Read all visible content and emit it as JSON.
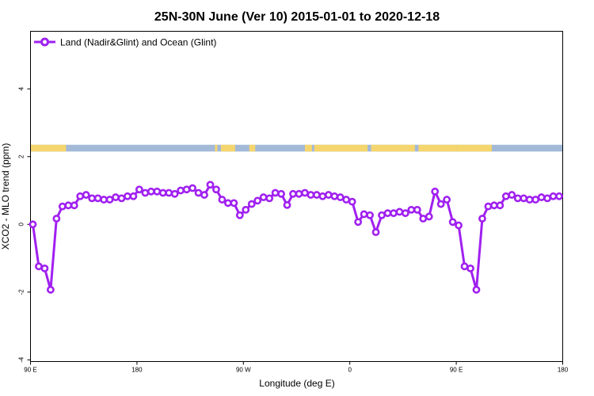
{
  "chart_data": {
    "type": "line",
    "title": "25N-30N June (Ver 10)   2015-01-01 to 2020-12-18",
    "xlabel": "Longitude (deg E)",
    "ylabel": "XCO2 - MLO trend (ppm)",
    "x_ticks": [
      {
        "value": 90,
        "label": "90 E"
      },
      {
        "value": 180,
        "label": "180"
      },
      {
        "value": 270,
        "label": "90 W"
      },
      {
        "value": 360,
        "label": "0"
      },
      {
        "value": 450,
        "label": "90 E"
      },
      {
        "value": 540,
        "label": "180"
      }
    ],
    "y_ticks": [
      {
        "value": -4,
        "label": "-4"
      },
      {
        "value": -2,
        "label": "-2"
      },
      {
        "value": 0,
        "label": "0"
      },
      {
        "value": 2,
        "label": "2"
      },
      {
        "value": 4,
        "label": "4"
      }
    ],
    "xlim": [
      90,
      540
    ],
    "ylim": [
      -4.05,
      5.7
    ],
    "grid": false,
    "legend_position": "top-left",
    "colors": {
      "series": "#a020f0",
      "land": "#f5d66e",
      "ocean": "#a3b9d8"
    },
    "land_ocean_strip": {
      "y_range": [
        2.15,
        2.35
      ],
      "land_segments_lon": [
        [
          90,
          120
        ],
        [
          246,
          248
        ],
        [
          251,
          263
        ],
        [
          275,
          280
        ],
        [
          322,
          328
        ],
        [
          330,
          375
        ],
        [
          378,
          408
        ],
        [
          408,
          415
        ],
        [
          418,
          450
        ],
        [
          450,
          480
        ]
      ]
    },
    "series": [
      {
        "name": "Land (Nadir&Glint) and Ocean (Glint)",
        "x": [
          92,
          97,
          102,
          107,
          112,
          117,
          122,
          127,
          132,
          137,
          142,
          147,
          152,
          157,
          162,
          167,
          172,
          177,
          182,
          187,
          192,
          197,
          202,
          207,
          212,
          217,
          222,
          227,
          232,
          237,
          242,
          247,
          252,
          257,
          262,
          267,
          272,
          277,
          282,
          287,
          292,
          297,
          302,
          307,
          312,
          317,
          322,
          327,
          332,
          337,
          342,
          347,
          352,
          357,
          362,
          367,
          372,
          377,
          382,
          387,
          392,
          397,
          402,
          407,
          412,
          417,
          422,
          427,
          432,
          437,
          442,
          447,
          452,
          457,
          462,
          467,
          472,
          477,
          482,
          487,
          492,
          497,
          502,
          507,
          512,
          517,
          522,
          527,
          532,
          537
        ],
        "y": [
          0.0,
          -1.24,
          -1.3,
          -1.93,
          0.17,
          0.53,
          0.56,
          0.56,
          0.83,
          0.87,
          0.77,
          0.77,
          0.73,
          0.73,
          0.8,
          0.77,
          0.83,
          0.83,
          1.03,
          0.93,
          0.97,
          0.97,
          0.93,
          0.93,
          0.9,
          1.0,
          1.03,
          1.07,
          0.93,
          0.87,
          1.17,
          1.03,
          0.73,
          0.63,
          0.63,
          0.27,
          0.43,
          0.6,
          0.7,
          0.8,
          0.77,
          0.93,
          0.9,
          0.57,
          0.9,
          0.9,
          0.93,
          0.87,
          0.87,
          0.83,
          0.87,
          0.83,
          0.8,
          0.73,
          0.67,
          0.07,
          0.3,
          0.27,
          -0.23,
          0.27,
          0.33,
          0.33,
          0.37,
          0.33,
          0.43,
          0.43,
          0.17,
          0.23,
          0.97,
          0.6,
          0.73,
          0.07,
          -0.03,
          -1.24,
          -1.3,
          -1.93,
          0.17,
          0.53,
          0.56,
          0.56,
          0.83,
          0.87,
          0.77,
          0.77,
          0.73,
          0.73,
          0.8,
          0.77,
          0.83,
          0.83
        ]
      }
    ]
  }
}
